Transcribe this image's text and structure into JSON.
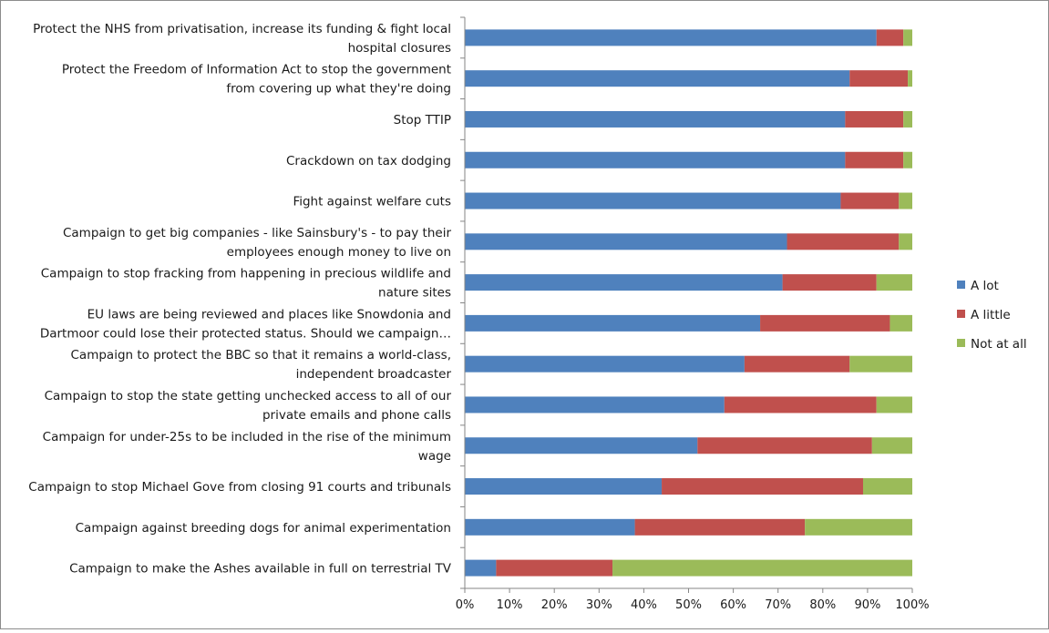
{
  "chart_data": {
    "type": "bar",
    "orientation": "horizontal",
    "stacked": "percent",
    "title": "",
    "xlabel": "",
    "ylabel": "",
    "xlim": [
      0,
      100
    ],
    "x_ticks": [
      "0%",
      "10%",
      "20%",
      "30%",
      "40%",
      "50%",
      "60%",
      "70%",
      "80%",
      "90%",
      "100%"
    ],
    "grid": false,
    "legend_position": "right",
    "categories": [
      [
        "Protect the NHS from privatisation, increase its funding & fight local",
        "hospital closures"
      ],
      [
        "Protect the Freedom of Information Act to stop the government",
        "from covering up what they're doing"
      ],
      [
        "Stop TTIP"
      ],
      [
        "Crackdown on tax dodging"
      ],
      [
        "Fight against welfare cuts"
      ],
      [
        "Campaign to get big companies - like Sainsbury's - to pay their",
        "employees enough money to live on"
      ],
      [
        "Campaign to stop fracking from happening in precious wildlife and",
        "nature sites"
      ],
      [
        "EU laws are being reviewed and places like Snowdonia and",
        "Dartmoor could lose their protected status. Should we campaign…"
      ],
      [
        "Campaign to protect the BBC so that it remains a world-class,",
        "independent broadcaster"
      ],
      [
        "Campaign to stop the state getting unchecked access to all of our",
        "private emails and phone calls"
      ],
      [
        "Campaign for under-25s to be included in the rise of the minimum",
        "wage"
      ],
      [
        "Campaign to stop Michael Gove from closing 91 courts and tribunals"
      ],
      [
        "Campaign against breeding dogs for animal experimentation"
      ],
      [
        "Campaign to make the Ashes available in full on terrestrial TV"
      ]
    ],
    "series": [
      {
        "name": "A lot",
        "color": "#4f81bd",
        "values": [
          92,
          86,
          85,
          85,
          84,
          72,
          71,
          66,
          62.5,
          58,
          52,
          44,
          38,
          7
        ]
      },
      {
        "name": "A little",
        "color": "#c0504d",
        "values": [
          6,
          13,
          13,
          13,
          13,
          25,
          21,
          29,
          23.5,
          34,
          39,
          45,
          38,
          26
        ]
      },
      {
        "name": "Not at all",
        "color": "#9bbb59",
        "values": [
          2,
          1,
          2,
          2,
          3,
          3,
          8,
          5,
          14,
          8,
          9,
          11,
          24,
          67
        ]
      }
    ]
  }
}
